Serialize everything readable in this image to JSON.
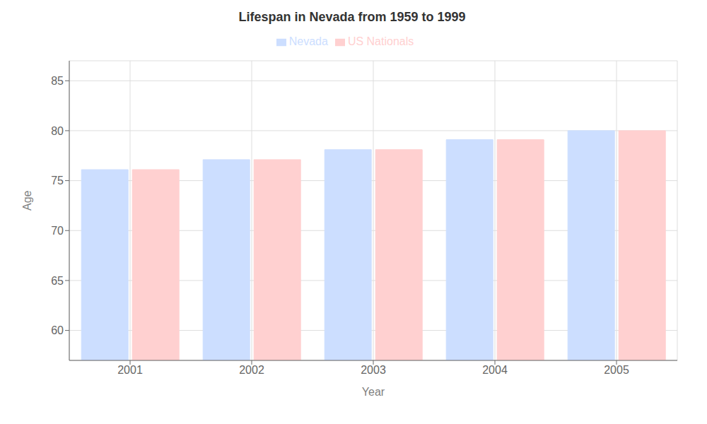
{
  "chart_data": {
    "type": "bar",
    "title": "Lifespan in Nevada from 1959 to 1999",
    "xlabel": "Year",
    "ylabel": "Age",
    "categories": [
      "2001",
      "2002",
      "2003",
      "2004",
      "2005"
    ],
    "series": [
      {
        "name": "Nevada",
        "color": "#ccdeff",
        "values": [
          76.1,
          77.1,
          78.1,
          79.1,
          80.0
        ]
      },
      {
        "name": "US Nationals",
        "color": "#ffd0d0",
        "values": [
          76.1,
          77.1,
          78.1,
          79.1,
          80.0
        ]
      }
    ],
    "ylim": [
      57,
      87
    ],
    "yticks": [
      60,
      65,
      70,
      75,
      80,
      85
    ],
    "grid": true,
    "legend": "top"
  }
}
